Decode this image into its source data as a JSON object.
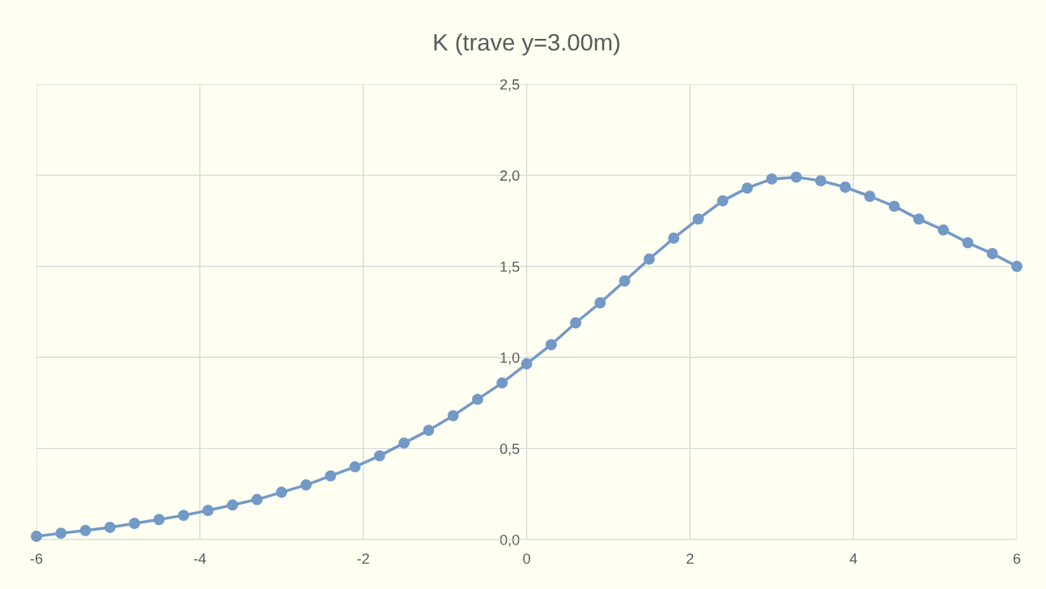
{
  "chart_data": {
    "type": "line",
    "title": "K (trave y=3.00m)",
    "x": [
      -6,
      -5.7,
      -5.4,
      -5.1,
      -4.8,
      -4.5,
      -4.2,
      -3.9,
      -3.6,
      -3.3,
      -3.0,
      -2.7,
      -2.4,
      -2.1,
      -1.8,
      -1.5,
      -1.2,
      -0.9,
      -0.6,
      -0.3,
      0,
      0.3,
      0.6,
      0.9,
      1.2,
      1.5,
      1.8,
      2.1,
      2.4,
      2.7,
      3.0,
      3.3,
      3.6,
      3.9,
      4.2,
      4.5,
      4.8,
      5.1,
      5.4,
      5.7,
      6.0
    ],
    "series": [
      {
        "color": "#7399c6",
        "values": [
          0.018,
          0.035,
          0.05,
          0.067,
          0.089,
          0.11,
          0.133,
          0.16,
          0.19,
          0.22,
          0.26,
          0.3,
          0.35,
          0.4,
          0.46,
          0.53,
          0.6,
          0.68,
          0.77,
          0.86,
          0.965,
          1.07,
          1.19,
          1.3,
          1.42,
          1.54,
          1.655,
          1.76,
          1.86,
          1.93,
          1.98,
          1.99,
          1.97,
          1.935,
          1.885,
          1.83,
          1.76,
          1.7,
          1.63,
          1.57,
          1.5
        ]
      }
    ],
    "xlim": [
      -6,
      6
    ],
    "xticks": [
      -6,
      -4,
      -2,
      0,
      2,
      4,
      6
    ],
    "ylim": [
      0,
      2.5
    ],
    "yticks": [
      {
        "value": 0,
        "label": "0,0"
      },
      {
        "value": 0.5,
        "label": "0,5"
      },
      {
        "value": 1.0,
        "label": "1,0"
      },
      {
        "value": 1.5,
        "label": "1,5"
      },
      {
        "value": 2.0,
        "label": "2,0"
      },
      {
        "value": 2.5,
        "label": "2,5"
      }
    ],
    "grid": true,
    "marker": "circle",
    "line_style": "solid",
    "legend": false
  }
}
